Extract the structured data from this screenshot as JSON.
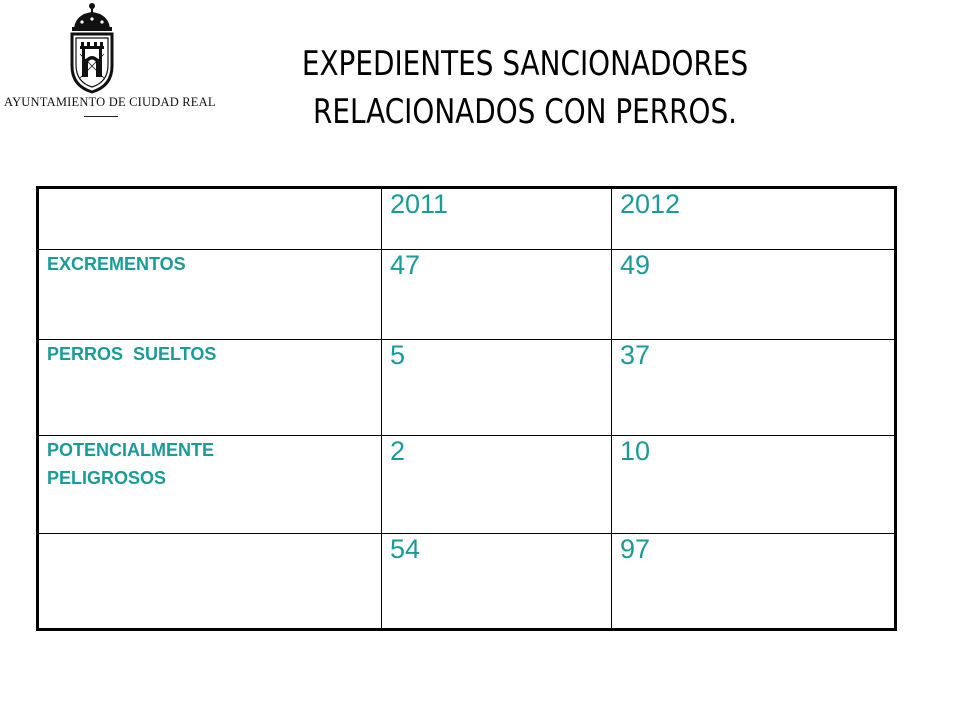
{
  "header": {
    "org_name": "AYUNTAMIENTO DE CIUDAD REAL",
    "title_line1": "EXPEDIENTES SANCIONADORES",
    "title_line2": "RELACIONADOS CON PERROS."
  },
  "table": {
    "columns": [
      "",
      "2011",
      "2012"
    ],
    "rows": [
      {
        "label": "EXCREMENTOS",
        "v2011": "47",
        "v2012": "49"
      },
      {
        "label": "PERROS  SUELTOS",
        "v2011": "5",
        "v2012": "37"
      },
      {
        "label": "POTENCIALMENTE PELIGROSOS",
        "v2011": "2",
        "v2012": "10"
      },
      {
        "label": "",
        "v2011": "54",
        "v2012": "97"
      }
    ]
  },
  "colors": {
    "table_text": "#1a9a98",
    "title": "#000000"
  },
  "icons": {
    "logo": "coat-of-arms-icon"
  }
}
